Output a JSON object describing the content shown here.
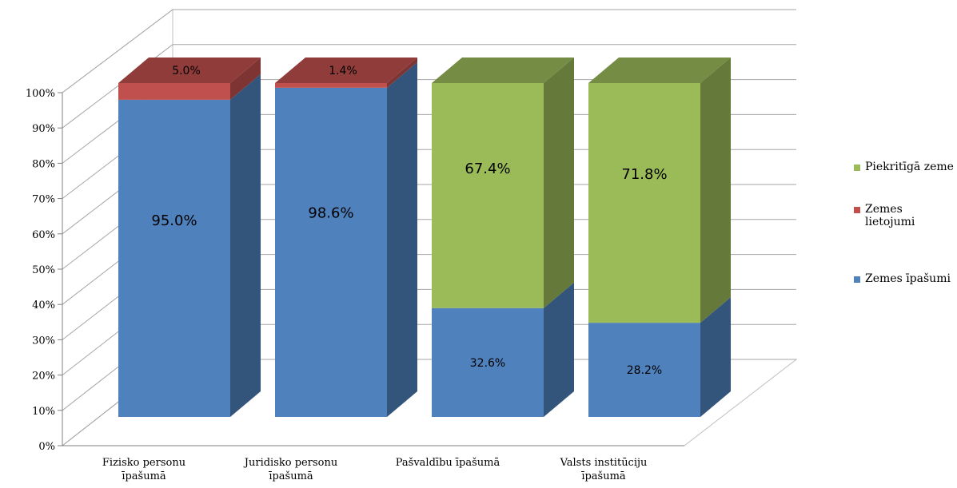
{
  "chart_data": {
    "type": "bar",
    "stacked": true,
    "percent_stacked": true,
    "three_d": true,
    "title": "",
    "xlabel": "",
    "ylabel": "",
    "ylim": [
      0,
      100
    ],
    "ytick_labels": [
      "0%",
      "10%",
      "20%",
      "30%",
      "40%",
      "50%",
      "60%",
      "70%",
      "80%",
      "90%",
      "100%"
    ],
    "categories": [
      [
        "Fizisko personu",
        "īpašumā"
      ],
      [
        "Juridisko personu",
        "īpašumā"
      ],
      [
        "Pašvaldību īpašumā"
      ],
      [
        "Valsts institūciju",
        "īpašumā"
      ]
    ],
    "series": [
      {
        "name": "Zemes īpašumi",
        "color": "#4f81bd",
        "values": [
          95.0,
          98.6,
          32.6,
          28.2
        ],
        "labels": [
          "95.0%",
          "98.6%",
          "32.6%",
          "28.2%"
        ]
      },
      {
        "name": "Zemes lietojumi",
        "color": "#c0504d",
        "values": [
          5.0,
          1.4,
          0,
          0
        ],
        "labels": [
          "5.0%",
          "1.4%",
          "",
          ""
        ]
      },
      {
        "name": "Piekritīgā zeme",
        "color": "#9bbb59",
        "values": [
          0,
          0,
          67.4,
          71.8
        ],
        "labels": [
          "",
          "",
          "67.4%",
          "71.8%"
        ]
      }
    ],
    "legend_entries": [
      {
        "name": [
          "Piekritīgā zeme"
        ],
        "color": "#9bbb59"
      },
      {
        "name": [
          "Zemes",
          "lietojumi"
        ],
        "color": "#c0504d"
      },
      {
        "name": [
          "Zemes īpašumi"
        ],
        "color": "#4f81bd"
      }
    ],
    "legend_position": "right",
    "grid": true
  }
}
